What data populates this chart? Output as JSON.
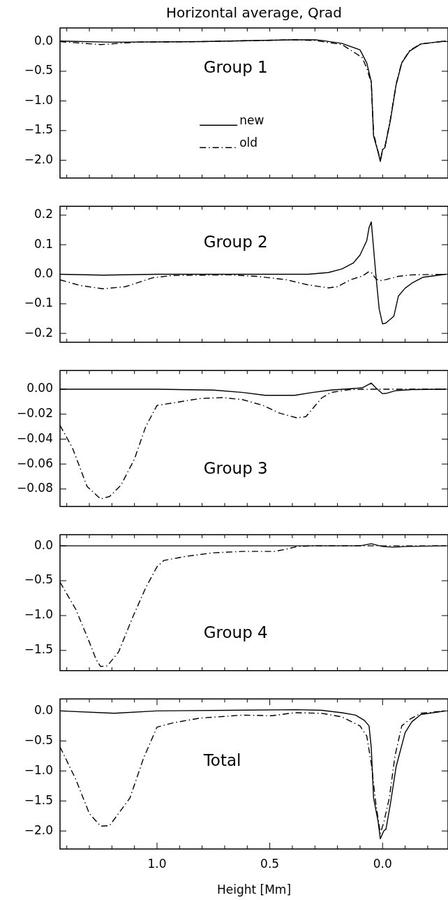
{
  "chart_data": [
    {
      "type": "line",
      "title": "Horizontal average, Qrad",
      "annotations": [
        "Group 1"
      ],
      "legend": "center",
      "grid": false,
      "tick_labels": "y",
      "xlim": [
        1.43,
        -0.29
      ],
      "ylim": [
        -2.3,
        0.23
      ],
      "xticks": [
        {
          "value": 1.4,
          "label": null
        },
        {
          "value": 1.3,
          "label": null
        },
        {
          "value": 1.2,
          "label": null
        },
        {
          "value": 1.1,
          "label": null
        },
        {
          "value": 1.0,
          "label": null
        },
        {
          "value": 0.9,
          "label": null
        },
        {
          "value": 0.8,
          "label": null
        },
        {
          "value": 0.7,
          "label": null
        },
        {
          "value": 0.6,
          "label": null
        },
        {
          "value": 0.5,
          "label": null
        },
        {
          "value": 0.4,
          "label": null
        },
        {
          "value": 0.3,
          "label": null
        },
        {
          "value": 0.2,
          "label": null
        },
        {
          "value": 0.1,
          "label": null
        },
        {
          "value": 0,
          "label": null
        },
        {
          "value": -0.1,
          "label": null
        },
        {
          "value": -0.2,
          "label": null
        }
      ],
      "yticks": [
        {
          "value": 0,
          "label": "0.0"
        },
        {
          "value": -0.5,
          "label": "−0.5"
        },
        {
          "value": -1.0,
          "label": "−1.0"
        },
        {
          "value": -1.5,
          "label": "−1.5"
        },
        {
          "value": -2.0,
          "label": "−2.0"
        }
      ],
      "series": [
        {
          "name": "new",
          "color": "#000000",
          "line_style": "solid",
          "x": [
            1.43,
            1.2,
            0.8,
            0.4,
            0.3,
            0.27,
            0.18,
            0.1,
            0.07,
            0.05,
            0.04,
            0.02,
            0.01,
            0.0,
            -0.01,
            -0.035,
            -0.06,
            -0.085,
            -0.12,
            -0.17,
            -0.28
          ],
          "values": [
            0.01,
            -0.01,
            0.0,
            0.03,
            0.03,
            0.02,
            -0.03,
            -0.14,
            -0.36,
            -0.68,
            -1.59,
            -1.86,
            -2.02,
            -1.82,
            -1.79,
            -1.32,
            -0.73,
            -0.36,
            -0.16,
            -0.04,
            0.01
          ]
        },
        {
          "name": "old",
          "color": "#000000",
          "line_style": "dashed",
          "x": [
            1.43,
            1.25,
            1.09,
            0.8,
            0.4,
            0.3,
            0.18,
            0.09,
            0.07,
            0.05,
            0.04,
            0.02,
            0.01,
            0.0,
            -0.01,
            -0.035,
            -0.06,
            -0.085,
            -0.12,
            -0.17,
            -0.28
          ],
          "values": [
            0.0,
            -0.05,
            -0.01,
            0.0,
            0.03,
            0.02,
            -0.05,
            -0.27,
            -0.45,
            -0.7,
            -1.55,
            -1.85,
            -2.0,
            -1.82,
            -1.78,
            -1.3,
            -0.72,
            -0.35,
            -0.15,
            -0.04,
            0.01
          ]
        }
      ]
    },
    {
      "type": "line",
      "annotations": [
        "Group 2"
      ],
      "grid": false,
      "tick_labels": "y",
      "xlim": [
        1.43,
        -0.29
      ],
      "ylim": [
        -0.23,
        0.23
      ],
      "xticks": [
        {
          "value": 1.4,
          "label": null
        },
        {
          "value": 1.3,
          "label": null
        },
        {
          "value": 1.2,
          "label": null
        },
        {
          "value": 1.1,
          "label": null
        },
        {
          "value": 1.0,
          "label": null
        },
        {
          "value": 0.9,
          "label": null
        },
        {
          "value": 0.8,
          "label": null
        },
        {
          "value": 0.7,
          "label": null
        },
        {
          "value": 0.6,
          "label": null
        },
        {
          "value": 0.5,
          "label": null
        },
        {
          "value": 0.4,
          "label": null
        },
        {
          "value": 0.3,
          "label": null
        },
        {
          "value": 0.2,
          "label": null
        },
        {
          "value": 0.1,
          "label": null
        },
        {
          "value": 0,
          "label": null
        },
        {
          "value": -0.1,
          "label": null
        },
        {
          "value": -0.2,
          "label": null
        }
      ],
      "yticks": [
        {
          "value": 0.2,
          "label": "0.2"
        },
        {
          "value": 0.1,
          "label": "0.1"
        },
        {
          "value": 0,
          "label": "0.0"
        },
        {
          "value": -0.1,
          "label": "−0.1"
        },
        {
          "value": -0.2,
          "label": "−0.2"
        }
      ],
      "series": [
        {
          "color": "#000000",
          "line_style": "solid",
          "x": [
            1.43,
            1.24,
            1.0,
            0.33,
            0.24,
            0.18,
            0.13,
            0.1,
            0.07,
            0.06,
            0.05,
            0.03,
            0.015,
            0.0,
            -0.015,
            -0.05,
            -0.07,
            -0.1,
            -0.13,
            -0.18,
            -0.28
          ],
          "values": [
            0,
            -0.003,
            0,
            0,
            0.006,
            0.018,
            0.038,
            0.065,
            0.114,
            0.158,
            0.177,
            0,
            -0.118,
            -0.168,
            -0.165,
            -0.142,
            -0.074,
            -0.047,
            -0.03,
            -0.01,
            0
          ]
        },
        {
          "color": "#000000",
          "line_style": "dashed",
          "x": [
            1.43,
            1.34,
            1.24,
            1.14,
            1.02,
            0.93,
            0.68,
            0.56,
            0.43,
            0.33,
            0.24,
            0.2,
            0.14,
            0.09,
            0.06,
            0.05,
            0.03,
            0.015,
            -0.015,
            -0.07,
            -0.13,
            -0.28
          ],
          "values": [
            -0.019,
            -0.038,
            -0.049,
            -0.042,
            -0.012,
            -0.004,
            -0.002,
            -0.007,
            -0.018,
            -0.036,
            -0.046,
            -0.042,
            -0.018,
            -0.006,
            0.009,
            0.006,
            -0.015,
            -0.022,
            -0.018,
            -0.007,
            -0.002,
            0
          ]
        }
      ]
    },
    {
      "type": "line",
      "annotations": [
        "Group 3"
      ],
      "grid": false,
      "tick_labels": "y",
      "xlim": [
        1.43,
        -0.29
      ],
      "ylim": [
        -0.094,
        0.015
      ],
      "xticks": [
        {
          "value": 1.4,
          "label": null
        },
        {
          "value": 1.3,
          "label": null
        },
        {
          "value": 1.2,
          "label": null
        },
        {
          "value": 1.1,
          "label": null
        },
        {
          "value": 1.0,
          "label": null
        },
        {
          "value": 0.9,
          "label": null
        },
        {
          "value": 0.8,
          "label": null
        },
        {
          "value": 0.7,
          "label": null
        },
        {
          "value": 0.6,
          "label": null
        },
        {
          "value": 0.5,
          "label": null
        },
        {
          "value": 0.4,
          "label": null
        },
        {
          "value": 0.3,
          "label": null
        },
        {
          "value": 0.2,
          "label": null
        },
        {
          "value": 0.1,
          "label": null
        },
        {
          "value": 0,
          "label": null
        },
        {
          "value": -0.1,
          "label": null
        },
        {
          "value": -0.2,
          "label": null
        }
      ],
      "yticks": [
        {
          "value": 0,
          "label": "0.00"
        },
        {
          "value": -0.02,
          "label": "−0.02"
        },
        {
          "value": -0.04,
          "label": "−0.04"
        },
        {
          "value": -0.06,
          "label": "−0.06"
        },
        {
          "value": -0.08,
          "label": "−0.08"
        }
      ],
      "series": [
        {
          "color": "#000000",
          "line_style": "solid",
          "x": [
            1.43,
            1.0,
            0.75,
            0.62,
            0.52,
            0.39,
            0.31,
            0.23,
            0.14,
            0.09,
            0.05,
            0.03,
            0.0,
            -0.02,
            -0.06,
            -0.13,
            -0.28
          ],
          "values": [
            0,
            0,
            -0.0007,
            -0.0026,
            -0.0049,
            -0.0049,
            -0.0026,
            -0.0007,
            0.0004,
            0.0011,
            0.0049,
            0.0011,
            -0.0036,
            -0.0032,
            -0.0011,
            -0.0003,
            0
          ]
        },
        {
          "color": "#000000",
          "line_style": "dashed",
          "x": [
            1.43,
            1.375,
            1.31,
            1.25,
            1.21,
            1.16,
            1.1,
            1.05,
            1.0,
            0.93,
            0.81,
            0.71,
            0.62,
            0.53,
            0.46,
            0.38,
            0.34,
            0.27,
            0.23,
            0.15,
            0.05,
            -0.28
          ],
          "values": [
            -0.029,
            -0.047,
            -0.078,
            -0.088,
            -0.086,
            -0.077,
            -0.056,
            -0.03,
            -0.013,
            -0.011,
            -0.0075,
            -0.0067,
            -0.0084,
            -0.013,
            -0.019,
            -0.023,
            -0.022,
            -0.007,
            -0.0027,
            -0.0004,
            0,
            0
          ]
        }
      ]
    },
    {
      "type": "line",
      "annotations": [
        "Group 4"
      ],
      "grid": false,
      "tick_labels": "y",
      "xlim": [
        1.43,
        -0.29
      ],
      "ylim": [
        -1.79,
        0.16
      ],
      "xticks": [
        {
          "value": 1.4,
          "label": null
        },
        {
          "value": 1.3,
          "label": null
        },
        {
          "value": 1.2,
          "label": null
        },
        {
          "value": 1.1,
          "label": null
        },
        {
          "value": 1.0,
          "label": null
        },
        {
          "value": 0.9,
          "label": null
        },
        {
          "value": 0.8,
          "label": null
        },
        {
          "value": 0.7,
          "label": null
        },
        {
          "value": 0.6,
          "label": null
        },
        {
          "value": 0.5,
          "label": null
        },
        {
          "value": 0.4,
          "label": null
        },
        {
          "value": 0.3,
          "label": null
        },
        {
          "value": 0.2,
          "label": null
        },
        {
          "value": 0.1,
          "label": null
        },
        {
          "value": 0,
          "label": null
        },
        {
          "value": -0.1,
          "label": null
        },
        {
          "value": -0.2,
          "label": null
        }
      ],
      "yticks": [
        {
          "value": 0,
          "label": "0.0"
        },
        {
          "value": -0.5,
          "label": "−0.5"
        },
        {
          "value": -1.0,
          "label": "−1.0"
        },
        {
          "value": -1.5,
          "label": "−1.5"
        }
      ],
      "series": [
        {
          "color": "#000000",
          "line_style": "solid",
          "x": [
            1.43,
            0.1,
            0.05,
            0.0,
            -0.05,
            -0.1,
            -0.28
          ],
          "values": [
            0,
            0,
            0.03,
            -0.01,
            -0.02,
            -0.01,
            0
          ]
        },
        {
          "color": "#000000",
          "line_style": "dashed",
          "x": [
            1.43,
            1.36,
            1.3,
            1.27,
            1.25,
            1.22,
            1.17,
            1.11,
            1.05,
            1.0,
            0.97,
            0.87,
            0.75,
            0.62,
            0.48,
            0.43,
            0.38,
            0.31,
            -0.28
          ],
          "values": [
            -0.52,
            -0.91,
            -1.38,
            -1.63,
            -1.73,
            -1.72,
            -1.52,
            -1.04,
            -0.6,
            -0.3,
            -0.21,
            -0.15,
            -0.1,
            -0.08,
            -0.08,
            -0.05,
            -0.01,
            0,
            0
          ]
        }
      ]
    },
    {
      "type": "line",
      "annotations": [
        "Total"
      ],
      "xlabel": "Height [Mm]",
      "grid": false,
      "xlim": [
        1.43,
        -0.29
      ],
      "ylim": [
        -2.3,
        0.2
      ],
      "xticks": [
        {
          "value": 1.4,
          "label": null
        },
        {
          "value": 1.3,
          "label": null
        },
        {
          "value": 1.2,
          "label": null
        },
        {
          "value": 1.1,
          "label": null
        },
        {
          "value": 1.0,
          "label": "1.0"
        },
        {
          "value": 0.9,
          "label": null
        },
        {
          "value": 0.8,
          "label": null
        },
        {
          "value": 0.7,
          "label": null
        },
        {
          "value": 0.6,
          "label": null
        },
        {
          "value": 0.5,
          "label": "0.5"
        },
        {
          "value": 0.4,
          "label": null
        },
        {
          "value": 0.3,
          "label": null
        },
        {
          "value": 0.2,
          "label": null
        },
        {
          "value": 0.1,
          "label": null
        },
        {
          "value": 0,
          "label": "0.0"
        },
        {
          "value": -0.1,
          "label": null
        },
        {
          "value": -0.2,
          "label": null
        }
      ],
      "yticks": [
        {
          "value": 0,
          "label": "0.0"
        },
        {
          "value": -0.5,
          "label": "−0.5"
        },
        {
          "value": -1.0,
          "label": "−1.0"
        },
        {
          "value": -1.5,
          "label": "−1.5"
        },
        {
          "value": -2.0,
          "label": "−2.0"
        }
      ],
      "series": [
        {
          "color": "#000000",
          "line_style": "solid",
          "x": [
            1.43,
            1.19,
            1.0,
            0.68,
            0.38,
            0.27,
            0.18,
            0.12,
            0.08,
            0.06,
            0.05,
            0.04,
            0.02,
            0.01,
            -0.005,
            -0.015,
            -0.035,
            -0.06,
            -0.1,
            -0.13,
            -0.17,
            -0.28
          ],
          "values": [
            0,
            -0.04,
            0,
            0.01,
            0.02,
            0.01,
            -0.03,
            -0.07,
            -0.16,
            -0.25,
            -0.62,
            -1.45,
            -1.84,
            -2.13,
            -2.0,
            -1.97,
            -1.54,
            -0.93,
            -0.36,
            -0.18,
            -0.06,
            0
          ]
        },
        {
          "color": "#000000",
          "line_style": "dashed",
          "x": [
            1.43,
            1.36,
            1.3,
            1.25,
            1.21,
            1.12,
            1.06,
            1.0,
            0.93,
            0.81,
            0.62,
            0.49,
            0.39,
            0.27,
            0.18,
            0.1,
            0.07,
            0.05,
            0.03,
            0.01,
            -0.005,
            -0.03,
            -0.055,
            -0.085,
            -0.12,
            -0.17,
            -0.28
          ],
          "values": [
            -0.6,
            -1.14,
            -1.71,
            -1.92,
            -1.91,
            -1.45,
            -0.79,
            -0.27,
            -0.2,
            -0.12,
            -0.07,
            -0.08,
            -0.03,
            -0.04,
            -0.1,
            -0.25,
            -0.42,
            -0.88,
            -1.54,
            -2.04,
            -1.86,
            -1.45,
            -0.75,
            -0.25,
            -0.14,
            -0.04,
            0
          ]
        }
      ]
    }
  ]
}
